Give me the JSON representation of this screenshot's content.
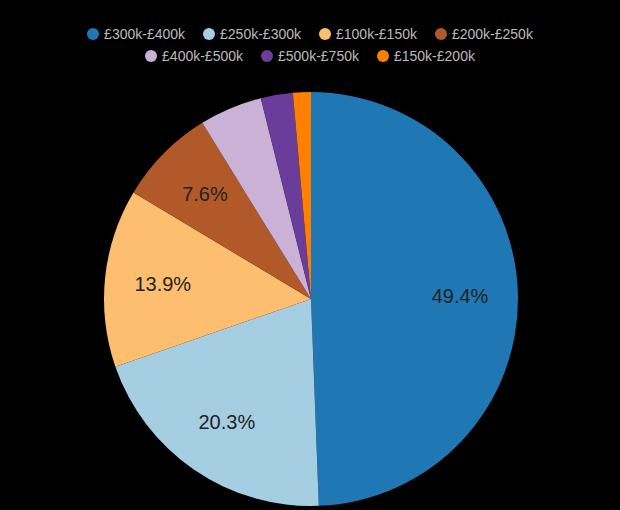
{
  "chart_data": {
    "type": "pie",
    "categories": [
      "£300k-£400k",
      "£250k-£300k",
      "£100k-£150k",
      "£200k-£250k",
      "£400k-£500k",
      "£500k-£750k",
      "£150k-£200k"
    ],
    "values": [
      49.4,
      20.3,
      13.9,
      7.6,
      4.9,
      2.5,
      1.4
    ],
    "value_labels": [
      "49.4%",
      "20.3%",
      "13.9%",
      "7.6%",
      null,
      null,
      null
    ],
    "colors": [
      "#1f78b4",
      "#a6cee3",
      "#fdbf6f",
      "#b15928",
      "#cab2d6",
      "#6a3d9a",
      "#ff7f00"
    ],
    "legend": "top"
  }
}
